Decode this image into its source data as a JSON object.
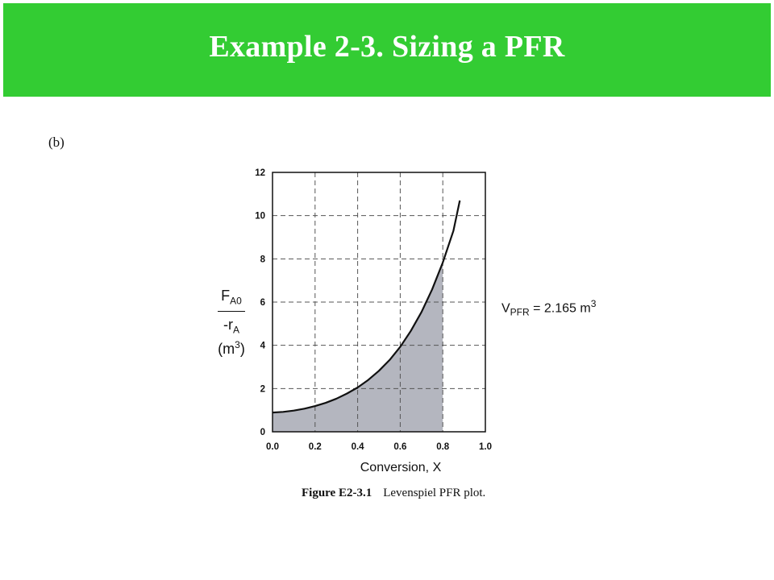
{
  "slide": {
    "title": "Example 2-3. Sizing a PFR",
    "part_label": "(b)"
  },
  "colors": {
    "banner": "#33cc33",
    "curve": "#111111",
    "shaded_area": "#b4b6bf",
    "grid": "#555555"
  },
  "figure": {
    "caption_number": "Figure E2-3.1",
    "caption_text": "Levenspiel PFR plot."
  },
  "chart_data": {
    "type": "area",
    "title": "",
    "xlabel": "Conversion, X",
    "ylabel": {
      "numerator_main": "F",
      "numerator_sub": "A0",
      "denominator_main": "-r",
      "denominator_sub": "A",
      "unit_main": "(m",
      "unit_sup": "3",
      "unit_close": ")"
    },
    "xlim": [
      0,
      1.0
    ],
    "ylim": [
      0,
      12
    ],
    "xticks": [
      {
        "value": 0.0,
        "label": "0.0"
      },
      {
        "value": 0.2,
        "label": "0.2"
      },
      {
        "value": 0.4,
        "label": "0.4"
      },
      {
        "value": 0.6,
        "label": "0.6"
      },
      {
        "value": 0.8,
        "label": "0.8"
      },
      {
        "value": 1.0,
        "label": "1.0"
      }
    ],
    "yticks": [
      {
        "value": 0,
        "label": "0"
      },
      {
        "value": 2,
        "label": "2"
      },
      {
        "value": 4,
        "label": "4"
      },
      {
        "value": 6,
        "label": "6"
      },
      {
        "value": 8,
        "label": "8"
      },
      {
        "value": 10,
        "label": "10"
      },
      {
        "value": 12,
        "label": "12"
      }
    ],
    "grid": true,
    "series": [
      {
        "x": [
          0.0,
          0.05,
          0.1,
          0.15,
          0.2,
          0.25,
          0.3,
          0.35,
          0.4,
          0.45,
          0.5,
          0.55,
          0.6,
          0.65,
          0.7,
          0.75,
          0.8,
          0.85,
          0.88
        ],
        "y": [
          0.89,
          0.92,
          0.98,
          1.07,
          1.19,
          1.34,
          1.53,
          1.77,
          2.05,
          2.4,
          2.82,
          3.32,
          3.93,
          4.67,
          5.54,
          6.59,
          7.83,
          9.3,
          10.7
        ]
      }
    ],
    "shaded_region": {
      "x_from": 0.0,
      "x_to": 0.8
    },
    "annotation": {
      "main": "V",
      "sub": "PFR",
      "middle": " = 2.165 m",
      "sup": "3"
    }
  }
}
